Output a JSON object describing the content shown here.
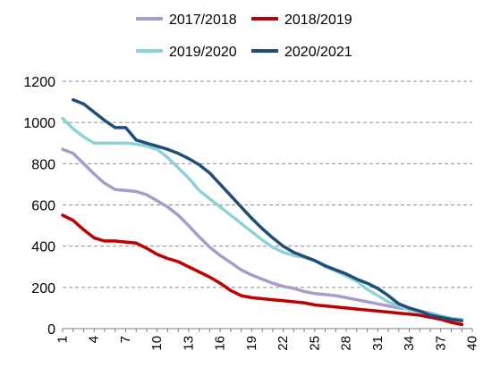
{
  "chart_data": {
    "type": "line",
    "title": "",
    "xlabel": "",
    "ylabel": "",
    "ylim": [
      0,
      1200
    ],
    "xlim": [
      1,
      40
    ],
    "y_ticks": [
      0,
      200,
      400,
      600,
      800,
      1000,
      1200
    ],
    "x_ticks": [
      1,
      4,
      7,
      10,
      13,
      16,
      19,
      22,
      25,
      28,
      31,
      34,
      37,
      40
    ],
    "grid": "horizontal dashed",
    "legend_position": "top",
    "series": [
      {
        "name": "2017/2018",
        "color": "#a89cc8",
        "x": [
          1,
          2,
          3,
          4,
          5,
          6,
          7,
          8,
          9,
          10,
          11,
          12,
          13,
          14,
          15,
          16,
          17,
          18,
          19,
          20,
          21,
          22,
          23,
          24,
          25,
          26,
          27,
          28,
          29,
          30,
          31,
          32,
          33,
          34,
          35,
          36,
          37,
          38,
          39
        ],
        "values": [
          870,
          850,
          800,
          750,
          705,
          675,
          670,
          665,
          650,
          620,
          590,
          550,
          500,
          445,
          395,
          355,
          320,
          285,
          260,
          240,
          220,
          205,
          195,
          180,
          170,
          165,
          160,
          150,
          140,
          130,
          120,
          110,
          100,
          95,
          85,
          75,
          60,
          50,
          40
        ]
      },
      {
        "name": "2018/2019",
        "color": "#c00000",
        "x": [
          1,
          2,
          3,
          4,
          5,
          6,
          7,
          8,
          9,
          10,
          11,
          12,
          13,
          14,
          15,
          16,
          17,
          18,
          19,
          20,
          21,
          22,
          23,
          24,
          25,
          26,
          27,
          28,
          29,
          30,
          31,
          32,
          33,
          34,
          35,
          36,
          37,
          38,
          39
        ],
        "values": [
          550,
          525,
          480,
          440,
          425,
          425,
          420,
          415,
          390,
          360,
          340,
          325,
          300,
          275,
          250,
          220,
          185,
          160,
          150,
          145,
          140,
          135,
          130,
          125,
          115,
          110,
          105,
          100,
          95,
          90,
          85,
          80,
          75,
          70,
          65,
          55,
          45,
          30,
          20
        ]
      },
      {
        "name": "2019/2020",
        "color": "#8dd3d6",
        "x": [
          1,
          2,
          3,
          4,
          5,
          6,
          7,
          8,
          9,
          10,
          11,
          12,
          13,
          14,
          15,
          16,
          17,
          18,
          19,
          20,
          21,
          22,
          23,
          24,
          25,
          26,
          27,
          28,
          29,
          30,
          31,
          32,
          33,
          34,
          35,
          36,
          37,
          38,
          39
        ],
        "values": [
          1020,
          970,
          930,
          900,
          900,
          900,
          900,
          895,
          885,
          870,
          830,
          780,
          730,
          670,
          630,
          590,
          550,
          510,
          470,
          430,
          395,
          370,
          355,
          345,
          330,
          300,
          280,
          255,
          230,
          190,
          160,
          130,
          110,
          90,
          80,
          70,
          60,
          50,
          45
        ]
      },
      {
        "name": "2020/2021",
        "color": "#1f4e79",
        "x": [
          2,
          3,
          4,
          5,
          6,
          7,
          8,
          9,
          10,
          11,
          12,
          13,
          14,
          15,
          16,
          17,
          18,
          19,
          20,
          21,
          22,
          23,
          24,
          25,
          26,
          27,
          28,
          29,
          30,
          31,
          32,
          33,
          34,
          35,
          36,
          37,
          38,
          39
        ],
        "values": [
          1110,
          1090,
          1050,
          1010,
          975,
          975,
          915,
          900,
          885,
          870,
          850,
          825,
          795,
          755,
          700,
          645,
          590,
          535,
          485,
          440,
          400,
          370,
          350,
          330,
          305,
          285,
          265,
          240,
          220,
          195,
          160,
          120,
          100,
          85,
          65,
          55,
          45,
          38
        ]
      }
    ]
  }
}
